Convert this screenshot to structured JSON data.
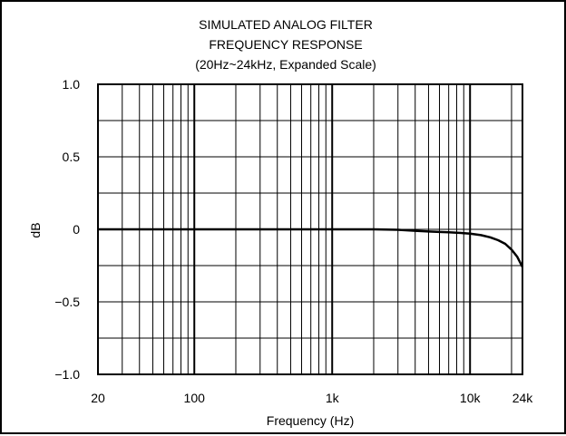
{
  "chart_data": {
    "type": "line",
    "title_lines": [
      "SIMULATED ANALOG FILTER",
      "FREQUENCY RESPONSE",
      "(20Hz~24kHz, Expanded Scale)"
    ],
    "xlabel": "Frequency (Hz)",
    "ylabel": "dB",
    "x_scale": "log",
    "xlim": [
      20,
      24000
    ],
    "ylim": [
      -1.0,
      1.0
    ],
    "x_ticks": [
      {
        "value": 20,
        "label": "20"
      },
      {
        "value": 100,
        "label": "100"
      },
      {
        "value": 1000,
        "label": "1k"
      },
      {
        "value": 10000,
        "label": "10k"
      },
      {
        "value": 24000,
        "label": "24k"
      }
    ],
    "y_ticks": [
      {
        "value": 1.0,
        "label": "1.0"
      },
      {
        "value": 0.5,
        "label": "0.5"
      },
      {
        "value": 0,
        "label": "0"
      },
      {
        "value": -0.5,
        "label": "−0.5"
      },
      {
        "value": -1.0,
        "label": "−1.0"
      }
    ],
    "grid": true,
    "series": [
      {
        "color": "#000000",
        "x": [
          20,
          100,
          500,
          1000,
          2000,
          3000,
          4000,
          5000,
          6000,
          7000,
          8000,
          9000,
          10000,
          12000,
          14000,
          16000,
          18000,
          20000,
          22000,
          24000
        ],
        "y": [
          0,
          0,
          0,
          0,
          0,
          -0.003,
          -0.01,
          -0.015,
          -0.018,
          -0.02,
          -0.023,
          -0.026,
          -0.03,
          -0.04,
          -0.055,
          -0.075,
          -0.1,
          -0.14,
          -0.19,
          -0.26
        ]
      }
    ]
  }
}
